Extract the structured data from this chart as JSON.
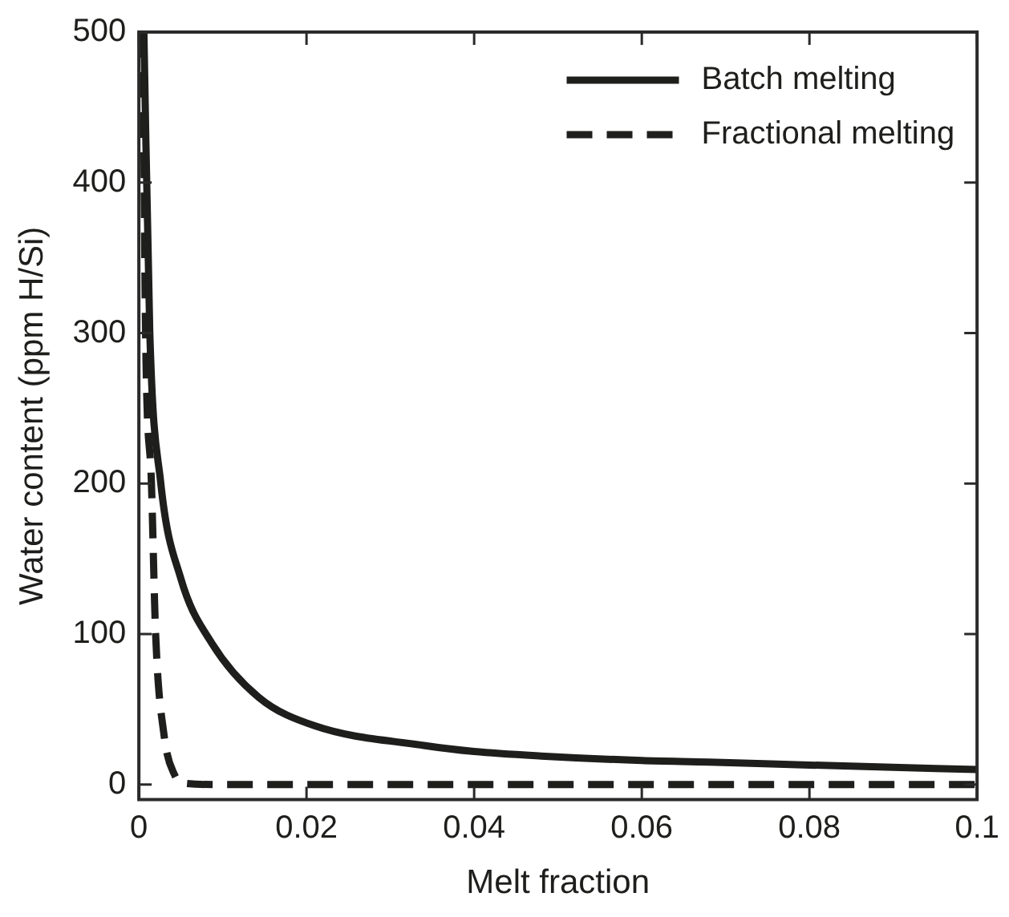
{
  "chart_data": {
    "type": "line",
    "xlabel": "Melt fraction",
    "ylabel": "Water content (ppm H/Si)",
    "xlim": [
      0,
      0.1
    ],
    "ylim": [
      -10,
      500
    ],
    "xticks": [
      0,
      0.02,
      0.04,
      0.06,
      0.08,
      0.1
    ],
    "yticks": [
      0,
      100,
      200,
      300,
      400,
      500
    ],
    "legend": "top right",
    "grid": false,
    "marker": "none",
    "series": [
      {
        "name": "Batch melting",
        "color": "#1e1e1c",
        "line_style": "solid",
        "x": [
          0.0006,
          0.0013,
          0.0026,
          0.005,
          0.0087,
          0.0143,
          0.021,
          0.034,
          0.04,
          0.048,
          0.06,
          0.068,
          0.08,
          0.1
        ],
        "values": [
          500,
          301,
          201,
          137,
          94,
          58,
          39,
          26,
          22,
          19,
          16,
          15,
          13,
          10
        ]
      },
      {
        "name": "Fractional melting",
        "color": "#1e1e1c",
        "line_style": "dashed",
        "x": [
          0.0005,
          0.0008,
          0.0015,
          0.002,
          0.003,
          0.0043,
          0.0053,
          0.01,
          0.05,
          0.1
        ],
        "values": [
          500,
          300,
          200,
          100,
          33,
          6,
          1,
          0,
          0,
          0
        ]
      }
    ]
  }
}
